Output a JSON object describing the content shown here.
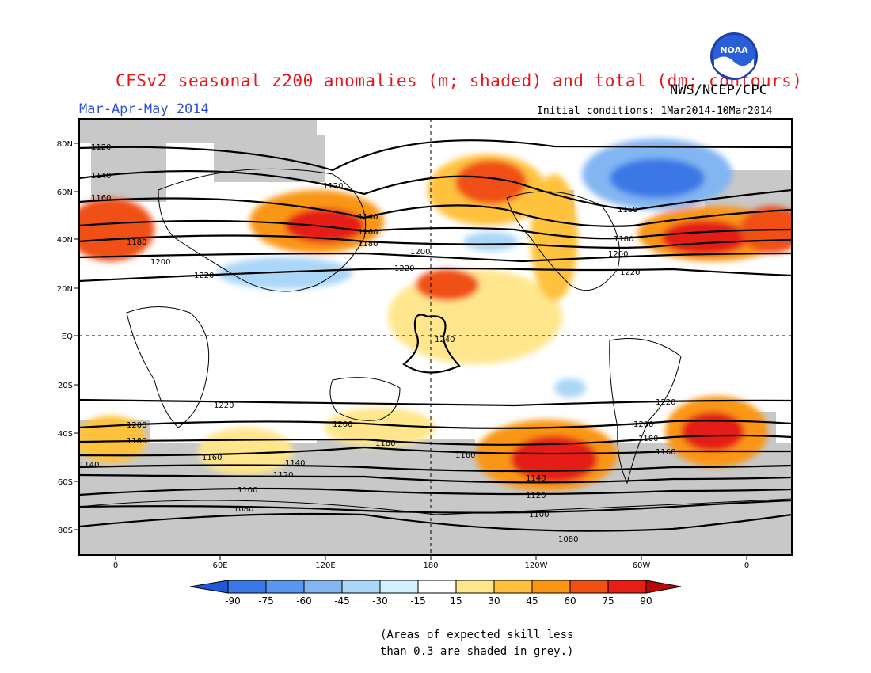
{
  "title": "CFSv2 seasonal z200 anomalies (m; shaded) and total (dm; contours)",
  "agency": "NWS/NCEP/CPC",
  "logo_text": "NOAA",
  "period": "Mar-Apr-May 2014",
  "initial_conditions": "Initial conditions: 1Mar2014-10Mar2014",
  "lat_labels": [
    "80N",
    "60N",
    "40N",
    "20N",
    "EQ",
    "20S",
    "40S",
    "60S",
    "80S"
  ],
  "lon_labels": [
    "0",
    "60E",
    "120E",
    "180",
    "120W",
    "60W",
    "0"
  ],
  "colorbar": {
    "ticks": [
      "-90",
      "-75",
      "-60",
      "-45",
      "-30",
      "-15",
      "15",
      "30",
      "45",
      "60",
      "75",
      "90"
    ],
    "colors": [
      "#1e5ad8",
      "#3a78e6",
      "#5a96ee",
      "#82b6f2",
      "#aad6f8",
      "#d2f0fc",
      "#ffffff",
      "#ffe68c",
      "#ffc23c",
      "#fa9614",
      "#f05014",
      "#e61e14",
      "#b40a0a",
      "#8c0000"
    ]
  },
  "contour_labels": [
    "1120",
    "1140",
    "1160",
    "1180",
    "1200",
    "1220",
    "1240",
    "1220",
    "1200",
    "1180",
    "1160",
    "1140",
    "1120",
    "1100",
    "1080",
    "1120",
    "1140",
    "1160",
    "1180",
    "1200",
    "1220",
    "1200",
    "1180",
    "1160",
    "1140",
    "1120",
    "1100",
    "1080",
    "1140",
    "1160",
    "1180",
    "1200",
    "1220",
    "1160",
    "1180",
    "1200",
    "1220"
  ],
  "note_line1": "(Areas of expected skill less",
  "note_line2": "than 0.3 are shaded in grey.)",
  "colors": {
    "title": "#e8141c",
    "period": "#2c4fd6",
    "grey_skill": "#c8c8c8"
  }
}
